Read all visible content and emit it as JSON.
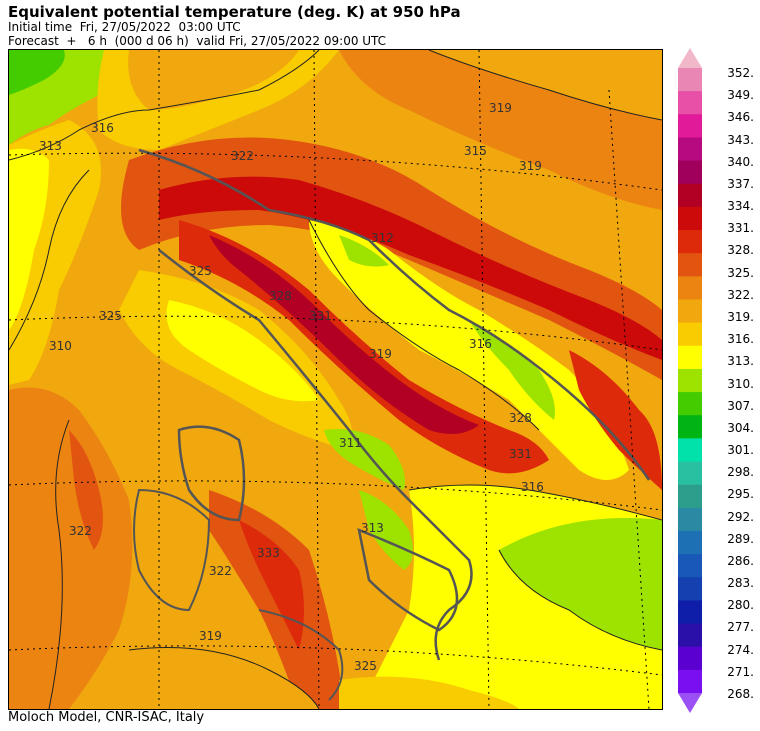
{
  "header": {
    "title": "Equivalent potential temperature (deg. K) at 950 hPa",
    "initial_time": "Initial time  Fri, 27/05/2022  03:00 UTC",
    "forecast": "Forecast  +   6 h  (000 d 06 h)  valid Fri, 27/05/2022 09:00 UTC"
  },
  "footer": {
    "credit": "Moloch Model, CNR-ISAC, Italy"
  },
  "map": {
    "contour_labels": [
      "316",
      "313",
      "319",
      "322",
      "325",
      "328",
      "331",
      "310",
      "312",
      "315",
      "311",
      "319",
      "316",
      "322",
      "325",
      "331",
      "333",
      "328",
      "316",
      "319",
      "325",
      "322",
      "319",
      "313"
    ]
  },
  "colorbar": {
    "levels": [
      {
        "value": "352.",
        "color": "#f0b8c8"
      },
      {
        "value": "349.",
        "color": "#ea86b4"
      },
      {
        "value": "346.",
        "color": "#e84fa6"
      },
      {
        "value": "343.",
        "color": "#e01a98"
      },
      {
        "value": "340.",
        "color": "#b80a80"
      },
      {
        "value": "337.",
        "color": "#a0005c"
      },
      {
        "value": "334.",
        "color": "#b20024"
      },
      {
        "value": "331.",
        "color": "#cc0a0a"
      },
      {
        "value": "328.",
        "color": "#dd2a0a"
      },
      {
        "value": "325.",
        "color": "#e25510"
      },
      {
        "value": "322.",
        "color": "#ec8412"
      },
      {
        "value": "319.",
        "color": "#f0a80e"
      },
      {
        "value": "316.",
        "color": "#f8cc00"
      },
      {
        "value": "313.",
        "color": "#ffff00"
      },
      {
        "value": "310.",
        "color": "#9ee200"
      },
      {
        "value": "307.",
        "color": "#44cc00"
      },
      {
        "value": "304.",
        "color": "#00b414"
      },
      {
        "value": "301.",
        "color": "#00e2aa"
      },
      {
        "value": "298.",
        "color": "#28c0a0"
      },
      {
        "value": "295.",
        "color": "#2e9e8c"
      },
      {
        "value": "292.",
        "color": "#2a8aa4"
      },
      {
        "value": "289.",
        "color": "#1e70b4"
      },
      {
        "value": "286.",
        "color": "#1a58b8"
      },
      {
        "value": "283.",
        "color": "#1440b0"
      },
      {
        "value": "280.",
        "color": "#0e1ea8"
      },
      {
        "value": "277.",
        "color": "#2a10a8"
      },
      {
        "value": "274.",
        "color": "#5a00d0"
      },
      {
        "value": "271.",
        "color": "#7a10f0"
      },
      {
        "value": "268.",
        "color": "#9a50f4"
      }
    ]
  }
}
